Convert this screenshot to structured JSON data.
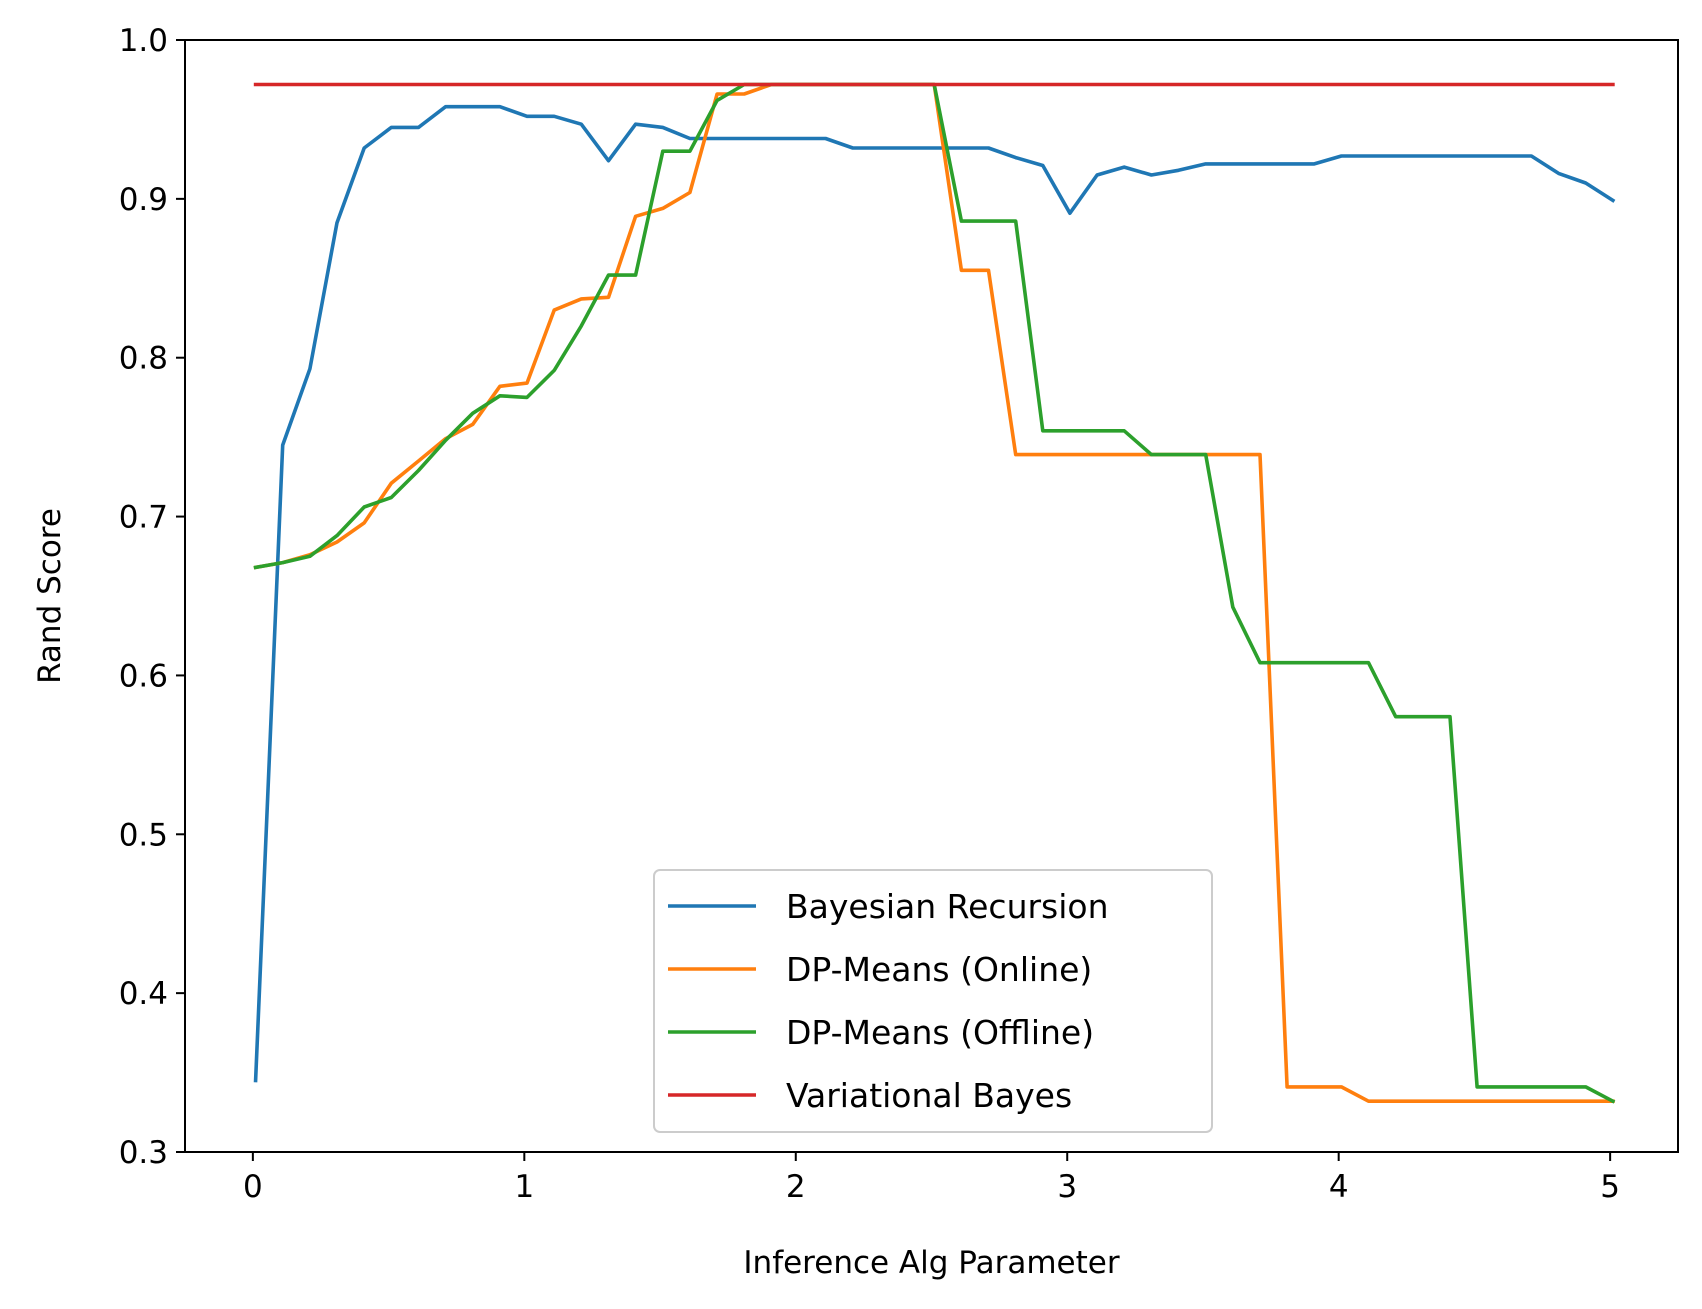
{
  "chart_data": {
    "type": "line",
    "title": "",
    "xlabel": "Inference Alg Parameter",
    "ylabel": "Rand Score",
    "xlim": [
      -0.25,
      5.25
    ],
    "ylim": [
      0.3,
      1.0
    ],
    "xticks": [
      0,
      1,
      2,
      3,
      4,
      5
    ],
    "yticks": [
      0.3,
      0.4,
      0.5,
      0.6,
      0.7,
      0.8,
      0.9,
      1.0
    ],
    "xtick_labels": [
      "0",
      "1",
      "2",
      "3",
      "4",
      "5"
    ],
    "ytick_labels": [
      "0.3",
      "0.4",
      "0.5",
      "0.6",
      "0.7",
      "0.8",
      "0.9",
      "1.0"
    ],
    "grid": false,
    "legend": {
      "position": "lower-center"
    },
    "x": [
      0.01,
      0.11,
      0.21,
      0.31,
      0.41,
      0.51,
      0.61,
      0.71,
      0.81,
      0.91,
      1.01,
      1.11,
      1.21,
      1.31,
      1.41,
      1.51,
      1.61,
      1.71,
      1.81,
      1.91,
      2.01,
      2.11,
      2.21,
      2.31,
      2.41,
      2.51,
      2.61,
      2.71,
      2.81,
      2.91,
      3.01,
      3.11,
      3.21,
      3.31,
      3.41,
      3.51,
      3.61,
      3.71,
      3.81,
      3.91,
      4.01,
      4.11,
      4.21,
      4.31,
      4.41,
      4.51,
      4.61,
      4.71,
      4.81,
      4.91,
      5.01
    ],
    "series": [
      {
        "name": "Bayesian Recursion",
        "color": "#1f77b4",
        "values": [
          0.345,
          0.745,
          0.793,
          0.885,
          0.932,
          0.945,
          0.945,
          0.958,
          0.958,
          0.958,
          0.952,
          0.952,
          0.947,
          0.924,
          0.947,
          0.945,
          0.938,
          0.938,
          0.938,
          0.938,
          0.938,
          0.938,
          0.932,
          0.932,
          0.932,
          0.932,
          0.932,
          0.932,
          0.926,
          0.921,
          0.891,
          0.915,
          0.92,
          0.915,
          0.918,
          0.922,
          0.922,
          0.922,
          0.922,
          0.922,
          0.927,
          0.927,
          0.927,
          0.927,
          0.927,
          0.927,
          0.927,
          0.927,
          0.916,
          0.91,
          0.899
        ]
      },
      {
        "name": "DP-Means (Online)",
        "color": "#ff7f0e",
        "values": [
          0.668,
          0.671,
          0.676,
          0.684,
          0.696,
          0.721,
          0.735,
          0.749,
          0.758,
          0.782,
          0.784,
          0.83,
          0.837,
          0.838,
          0.889,
          0.894,
          0.904,
          0.966,
          0.966,
          0.972,
          0.972,
          0.972,
          0.972,
          0.972,
          0.972,
          0.972,
          0.855,
          0.855,
          0.739,
          0.739,
          0.739,
          0.739,
          0.739,
          0.739,
          0.739,
          0.739,
          0.739,
          0.739,
          0.341,
          0.341,
          0.341,
          0.332,
          0.332,
          0.332,
          0.332,
          0.332,
          0.332,
          0.332,
          0.332,
          0.332,
          0.332
        ]
      },
      {
        "name": "DP-Means (Offline)",
        "color": "#2ca02c",
        "values": [
          0.668,
          0.671,
          0.675,
          0.688,
          0.706,
          0.712,
          0.729,
          0.748,
          0.765,
          0.776,
          0.775,
          0.792,
          0.82,
          0.852,
          0.852,
          0.93,
          0.93,
          0.962,
          0.972,
          0.972,
          0.972,
          0.972,
          0.972,
          0.972,
          0.972,
          0.972,
          0.886,
          0.886,
          0.886,
          0.754,
          0.754,
          0.754,
          0.754,
          0.739,
          0.739,
          0.739,
          0.643,
          0.608,
          0.608,
          0.608,
          0.608,
          0.608,
          0.574,
          0.574,
          0.574,
          0.341,
          0.341,
          0.341,
          0.341,
          0.341,
          0.332
        ]
      },
      {
        "name": "Variational Bayes",
        "color": "#d62728",
        "values": [
          0.972,
          0.972,
          0.972,
          0.972,
          0.972,
          0.972,
          0.972,
          0.972,
          0.972,
          0.972,
          0.972,
          0.972,
          0.972,
          0.972,
          0.972,
          0.972,
          0.972,
          0.972,
          0.972,
          0.972,
          0.972,
          0.972,
          0.972,
          0.972,
          0.972,
          0.972,
          0.972,
          0.972,
          0.972,
          0.972,
          0.972,
          0.972,
          0.972,
          0.972,
          0.972,
          0.972,
          0.972,
          0.972,
          0.972,
          0.972,
          0.972,
          0.972,
          0.972,
          0.972,
          0.972,
          0.972,
          0.972,
          0.972,
          0.972,
          0.972,
          0.972
        ]
      }
    ]
  }
}
